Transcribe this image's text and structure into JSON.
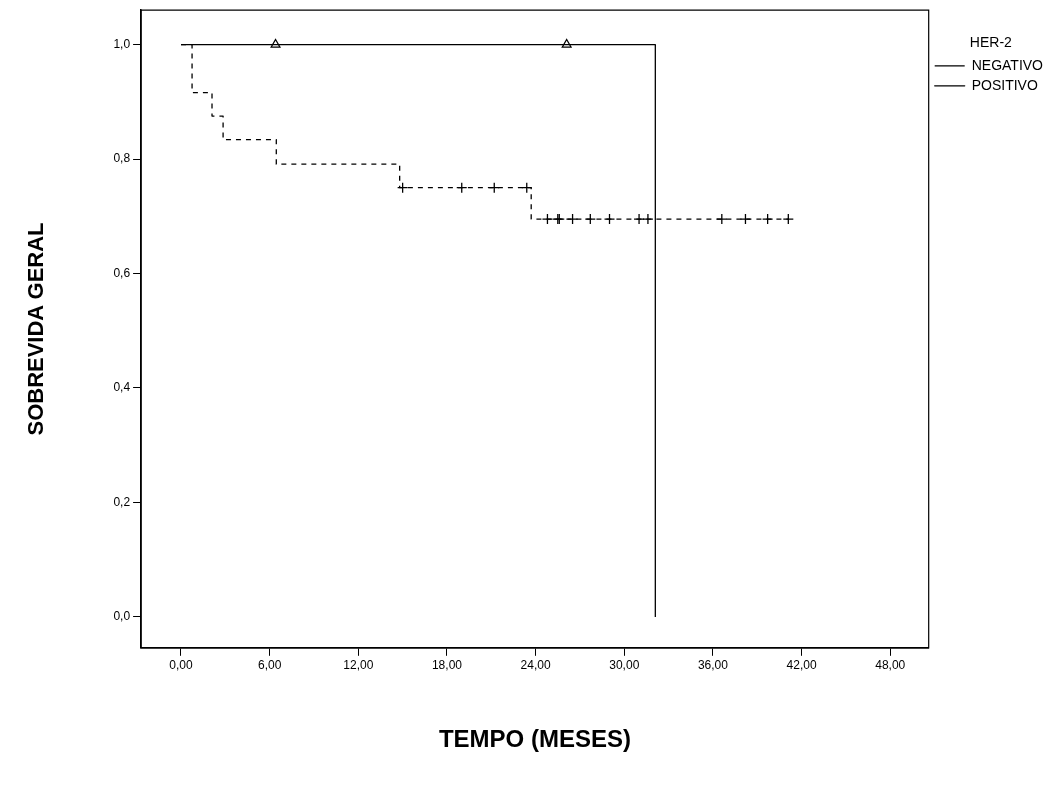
{
  "chart_data": {
    "type": "step",
    "xlabel": "TEMPO (MESES)",
    "ylabel": "SOBREVIDA GERAL",
    "legend_title": "HER-2",
    "xlim": [
      -2.7,
      50.6
    ],
    "ylim": [
      -0.054,
      1.06
    ],
    "xticks": [
      {
        "value": 0,
        "label": "0,00"
      },
      {
        "value": 6,
        "label": "6,00"
      },
      {
        "value": 12,
        "label": "12,00"
      },
      {
        "value": 18,
        "label": "18,00"
      },
      {
        "value": 24,
        "label": "24,00"
      },
      {
        "value": 30,
        "label": "30,00"
      },
      {
        "value": 36,
        "label": "36,00"
      },
      {
        "value": 42,
        "label": "42,00"
      },
      {
        "value": 48,
        "label": "48,00"
      }
    ],
    "yticks": [
      {
        "value": 0,
        "label": "0,0"
      },
      {
        "value": 0.2,
        "label": "0,2"
      },
      {
        "value": 0.4,
        "label": "0,4"
      },
      {
        "value": 0.6,
        "label": "0,6"
      },
      {
        "value": 0.8,
        "label": "0,8"
      },
      {
        "value": 1,
        "label": "1,0"
      }
    ],
    "grid": false,
    "legend": "top right",
    "series": [
      {
        "name": "NEGATIVO",
        "type": "step",
        "color": "#000000",
        "line_style": "dashed",
        "marker": "none",
        "x": [
          0,
          0.75,
          2.1,
          2.85,
          6.45,
          14.8,
          23.7,
          41.1
        ],
        "values": [
          1,
          0.916,
          0.875,
          0.834,
          0.791,
          0.75,
          0.695,
          0.695
        ]
      },
      {
        "name": "POSITIVO",
        "type": "step",
        "color": "#000000",
        "line_style": "solid",
        "marker": "none",
        "x": [
          0,
          32.1,
          32.1
        ],
        "values": [
          1,
          1,
          0
        ]
      },
      {
        "type": "scatter",
        "color": "#000000",
        "marker": "cross",
        "x": [
          15.0,
          19.0,
          21.2,
          23.4,
          24.8,
          25.5,
          25.6,
          26.5,
          27.7,
          29.0,
          31.0,
          31.6,
          36.6,
          38.2,
          39.7,
          41.1
        ],
        "values": [
          0.75,
          0.75,
          0.75,
          0.75,
          0.695,
          0.695,
          0.695,
          0.695,
          0.695,
          0.695,
          0.695,
          0.695,
          0.695,
          0.695,
          0.695,
          0.695
        ]
      },
      {
        "type": "scatter",
        "color": "#000000",
        "marker": "triangle",
        "x": [
          6.4,
          26.1
        ],
        "values": [
          1,
          1
        ]
      }
    ]
  }
}
